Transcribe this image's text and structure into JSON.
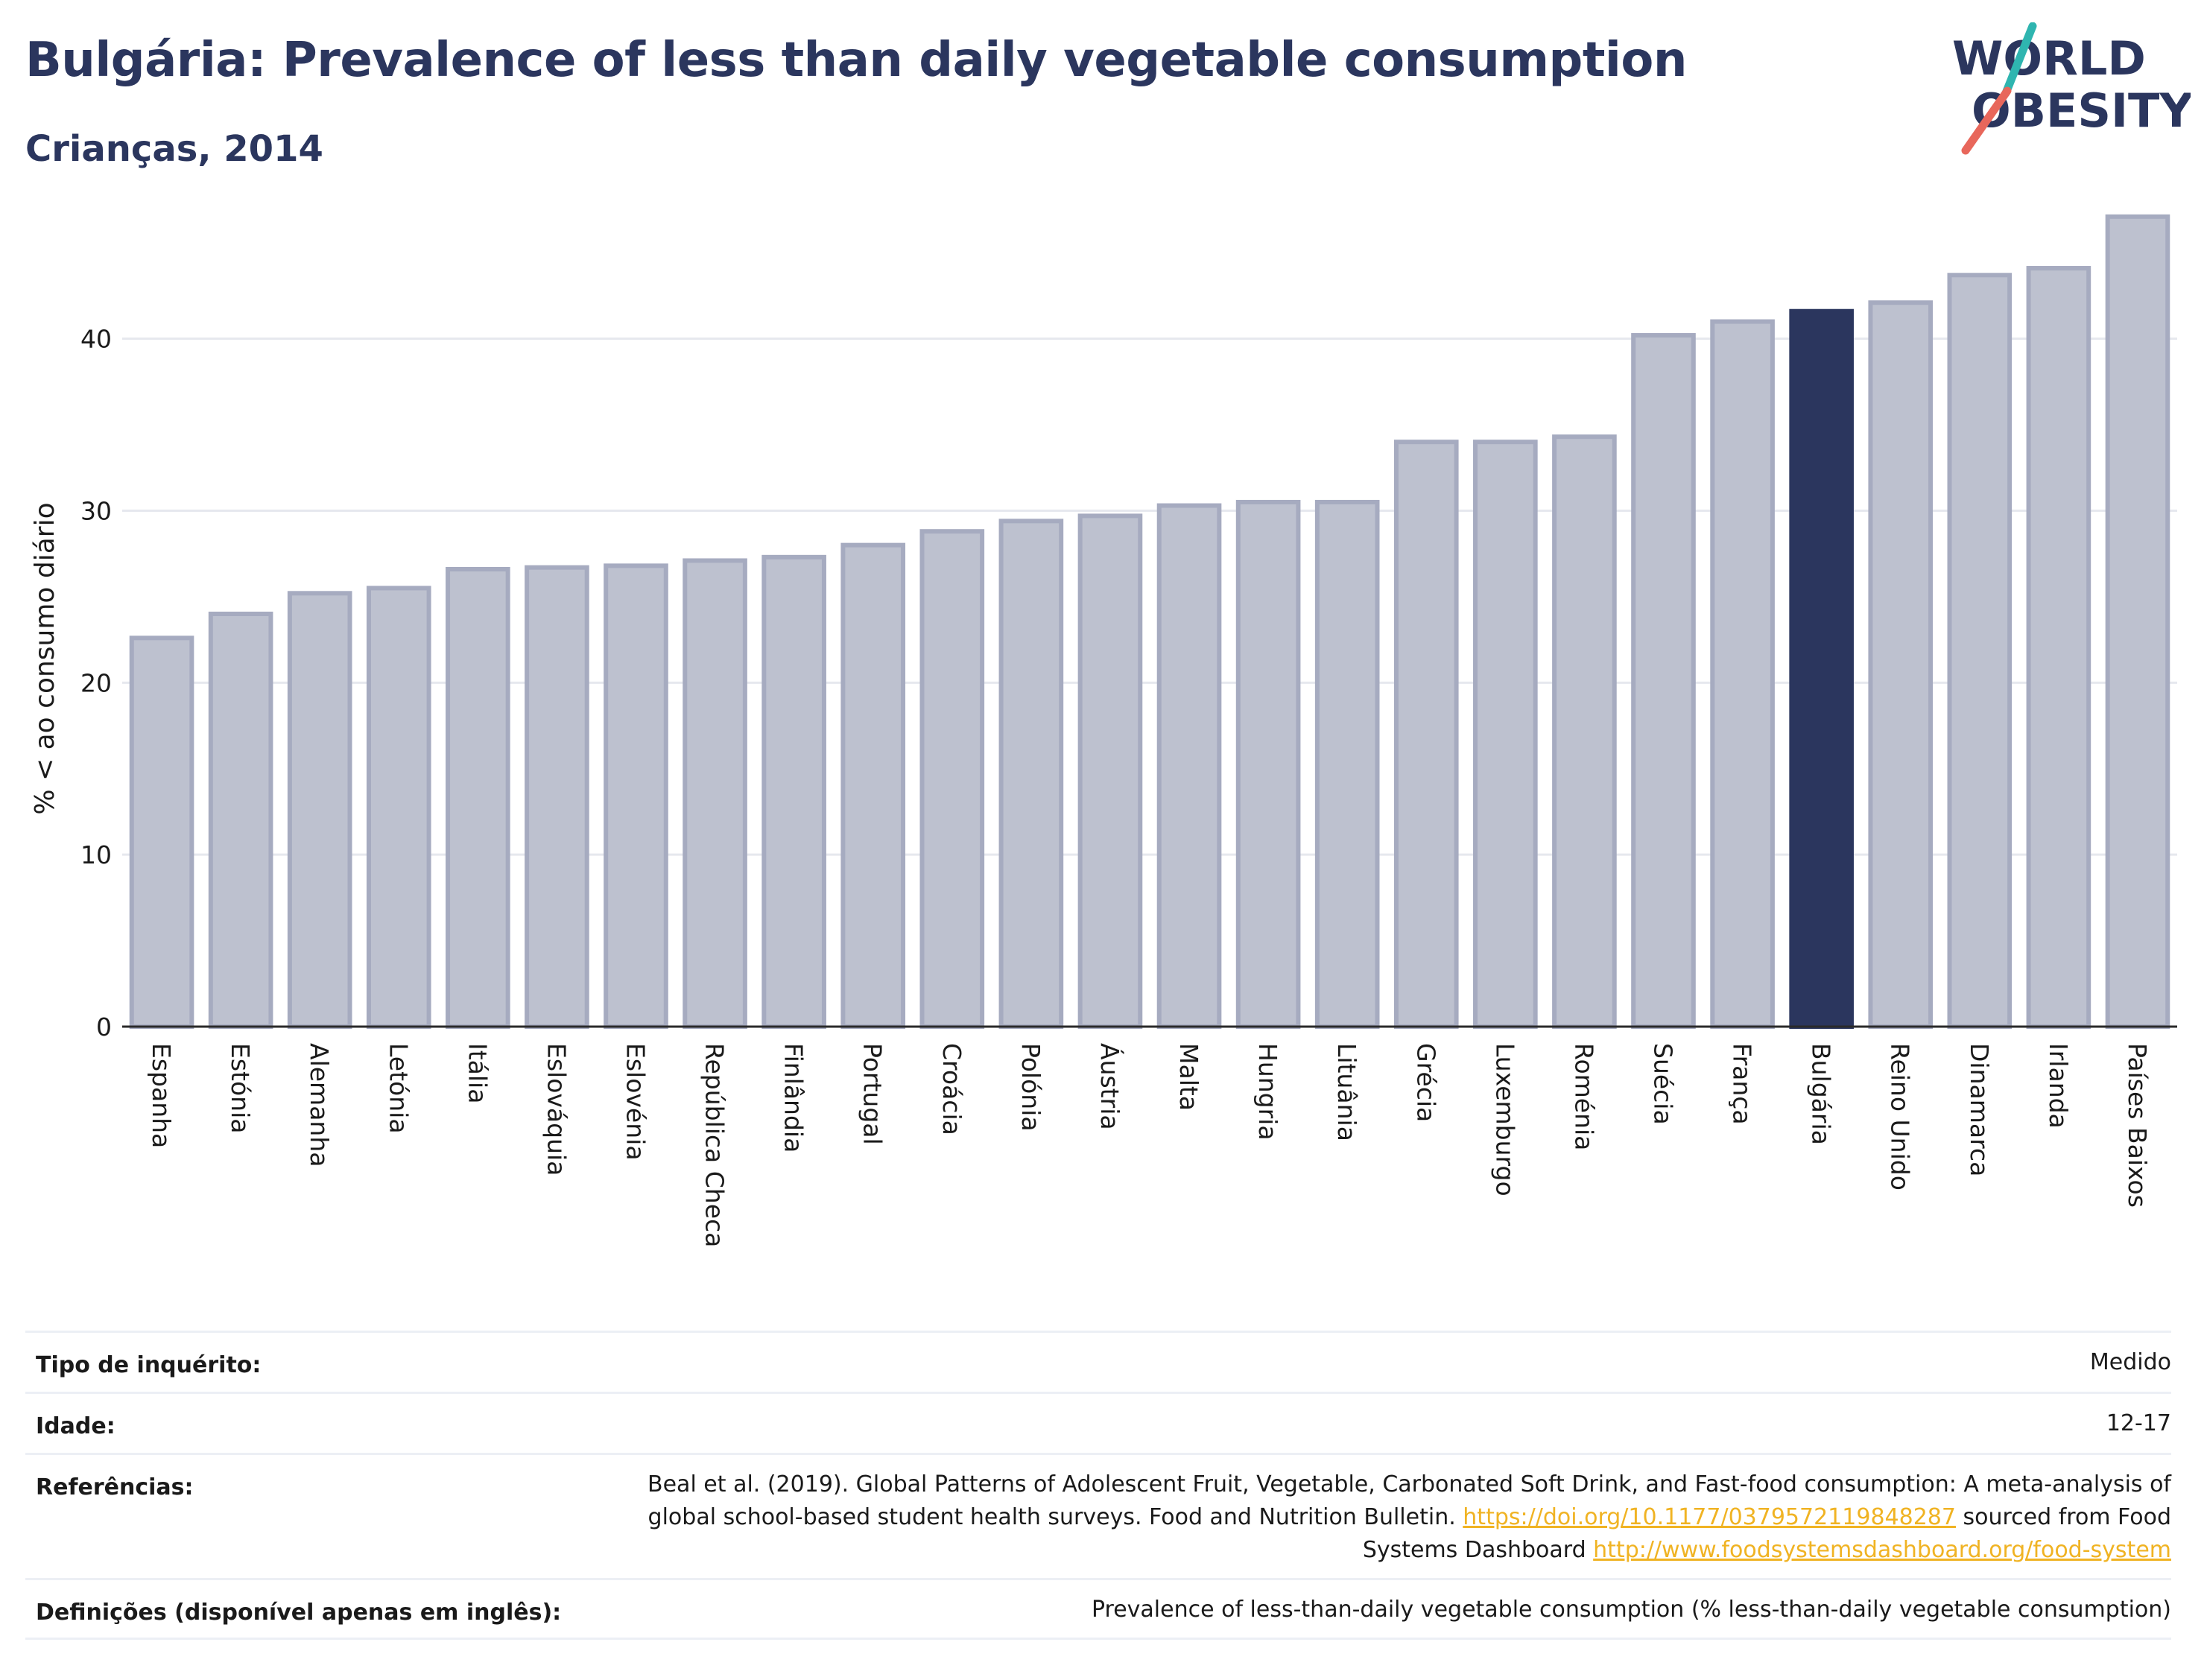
{
  "header": {
    "title": "Bulgária: Prevalence of less than daily vegetable consumption",
    "subtitle": "Crianças, 2014"
  },
  "logo": {
    "line1": "WORLD",
    "line2": "OBESITY",
    "slash_colors": [
      "#2fb5b0",
      "#e8675b"
    ],
    "text_color": "#2b365e"
  },
  "chart_data": {
    "type": "bar",
    "title": "",
    "xlabel": "",
    "ylabel": "% < ao consumo diário",
    "ylim": [
      0,
      48
    ],
    "yticks": [
      0,
      10,
      20,
      30,
      40
    ],
    "grid": true,
    "highlight": "Bulgária",
    "colors": {
      "default_fill": "#bdc1cf",
      "default_stroke": "#a6abc0",
      "highlight_fill": "#2b365e"
    },
    "categories": [
      "Espanha",
      "Estónia",
      "Alemanha",
      "Letónia",
      "Itália",
      "Eslováquia",
      "Eslovénia",
      "República Checa",
      "Finlândia",
      "Portugal",
      "Croácia",
      "Polónia",
      "Áustria",
      "Malta",
      "Hungria",
      "Lituânia",
      "Grécia",
      "Luxemburgo",
      "Roménia",
      "Suécia",
      "França",
      "Bulgária",
      "Reino Unido",
      "Dinamarca",
      "Irlanda",
      "Países Baixos"
    ],
    "values": [
      22.6,
      24.0,
      25.2,
      25.5,
      26.6,
      26.7,
      26.8,
      27.1,
      27.3,
      28.0,
      28.8,
      29.4,
      29.7,
      30.3,
      30.5,
      30.5,
      34.0,
      34.0,
      34.3,
      40.2,
      41.0,
      41.6,
      42.1,
      43.7,
      44.1,
      47.1
    ]
  },
  "meta": [
    {
      "label": "Tipo de inquérito:",
      "value": "Medido"
    },
    {
      "label": "Idade:",
      "value": "12-17"
    },
    {
      "label": "Referências:",
      "value_pre": "Beal et al. (2019). Global Patterns of Adolescent Fruit, Vegetable, Carbonated Soft Drink, and Fast-food consumption: A meta-analysis of global school-based student health surveys. Food and Nutrition Bulletin.",
      "link1": "https://doi.org/10.1177/0379572119848287",
      "value_mid": "sourced from Food Systems Dashboard",
      "link2": "http://www.foodsystemsdashboard.org/food-system"
    },
    {
      "label": "Definições (disponível apenas em inglês):",
      "value": "Prevalence of less-than-daily vegetable consumption (% less-than-daily vegetable consumption)"
    }
  ]
}
